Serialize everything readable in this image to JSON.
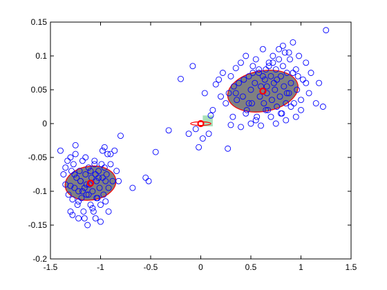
{
  "chart_data": {
    "type": "scatter",
    "title": "",
    "xlabel": "",
    "ylabel": "",
    "xlim": [
      -1.5,
      1.5
    ],
    "ylim": [
      -0.2,
      0.15
    ],
    "xticks": [
      -1.5,
      -1,
      -0.5,
      0,
      0.5,
      1,
      1.5
    ],
    "xtick_labels": [
      "-1.5",
      "-1",
      "-0.5",
      "0",
      "0.5",
      "1",
      "1.5"
    ],
    "yticks": [
      -0.2,
      -0.15,
      -0.1,
      -0.05,
      0,
      0.05,
      0.1,
      0.15
    ],
    "ytick_labels": [
      "-0.2",
      "-0.15",
      "-0.1",
      "-0.05",
      "0",
      "0.05",
      "0.1",
      "0.15"
    ],
    "grid": false,
    "colors": {
      "points": "#0000ff",
      "ellipse_fill": "#808080",
      "ellipse_edge": "#ff0000",
      "centers": "#ff0000",
      "small_patch": "#a8e0b8"
    },
    "series": [
      {
        "marker": "circle",
        "x": [
          -1.4,
          -1.37,
          -1.35,
          -1.33,
          -1.32,
          -1.3,
          -1.3,
          -1.29,
          -1.28,
          -1.28,
          -1.27,
          -1.26,
          -1.25,
          -1.24,
          -1.23,
          -1.22,
          -1.22,
          -1.21,
          -1.2,
          -1.19,
          -1.18,
          -1.17,
          -1.16,
          -1.15,
          -1.14,
          -1.13,
          -1.12,
          -1.11,
          -1.1,
          -1.09,
          -1.08,
          -1.07,
          -1.06,
          -1.05,
          -1.04,
          -1.03,
          -1.02,
          -1.01,
          -1.0,
          -0.99,
          -0.98,
          -0.97,
          -0.96,
          -0.95,
          -0.94,
          -0.93,
          -0.92,
          -0.9,
          -0.88,
          -0.86,
          -0.84,
          -0.82,
          -0.8,
          -1.25,
          -1.15,
          -1.05,
          -0.95,
          -1.2,
          -1.1,
          -1.0,
          -1.3,
          -1.18,
          -1.08,
          -0.98,
          -1.35,
          -1.22,
          -1.12,
          -1.02,
          -0.92,
          -1.26,
          -1.14,
          -1.04,
          -0.96,
          -1.16,
          -1.06,
          -0.9,
          -0.68,
          -0.55,
          -0.52,
          -0.45,
          -0.32,
          -0.2,
          -0.12,
          -0.08,
          -0.05,
          -0.02,
          0.02,
          0.04,
          0.08,
          0.12,
          0.1,
          0.15,
          0.18,
          0.2,
          0.22,
          0.25,
          0.27,
          0.28,
          0.3,
          0.32,
          0.33,
          0.35,
          0.36,
          0.38,
          0.4,
          0.42,
          0.43,
          0.45,
          0.46,
          0.48,
          0.5,
          0.51,
          0.52,
          0.54,
          0.55,
          0.56,
          0.58,
          0.59,
          0.6,
          0.62,
          0.63,
          0.64,
          0.65,
          0.66,
          0.67,
          0.68,
          0.7,
          0.71,
          0.72,
          0.73,
          0.74,
          0.75,
          0.76,
          0.78,
          0.79,
          0.8,
          0.81,
          0.82,
          0.83,
          0.84,
          0.85,
          0.86,
          0.88,
          0.89,
          0.9,
          0.92,
          0.93,
          0.95,
          0.96,
          0.98,
          1.0,
          1.02,
          1.05,
          1.08,
          1.1,
          1.15,
          1.18,
          1.22,
          1.25,
          0.3,
          0.4,
          0.5,
          0.55,
          0.6,
          0.65,
          0.7,
          0.75,
          0.8,
          0.85,
          0.9,
          0.95,
          1.0,
          0.45,
          0.58,
          0.68,
          0.78,
          0.88,
          0.35,
          0.62,
          0.72,
          0.82,
          0.92,
          0.48,
          0.52,
          0.66,
          0.76,
          0.86,
          0.97,
          1.05
        ],
        "y": [
          -0.04,
          -0.075,
          -0.09,
          -0.055,
          -0.105,
          -0.13,
          -0.092,
          -0.07,
          -0.112,
          -0.135,
          -0.06,
          -0.095,
          -0.045,
          -0.08,
          -0.12,
          -0.1,
          -0.14,
          -0.07,
          -0.085,
          -0.11,
          -0.055,
          -0.13,
          -0.095,
          -0.075,
          -0.105,
          -0.15,
          -0.065,
          -0.09,
          -0.12,
          -0.08,
          -0.1,
          -0.13,
          -0.06,
          -0.14,
          -0.085,
          -0.11,
          -0.07,
          -0.095,
          -0.12,
          -0.06,
          -0.08,
          -0.105,
          -0.065,
          -0.085,
          -0.075,
          -0.045,
          -0.095,
          -0.06,
          -0.085,
          -0.04,
          -0.07,
          -0.085,
          -0.018,
          -0.032,
          -0.05,
          -0.075,
          -0.115,
          -0.085,
          -0.07,
          -0.145,
          -0.05,
          -0.1,
          -0.125,
          -0.04,
          -0.065,
          -0.115,
          -0.105,
          -0.08,
          -0.13,
          -0.075,
          -0.09,
          -0.11,
          -0.035,
          -0.14,
          -0.055,
          -0.045,
          -0.095,
          -0.08,
          -0.085,
          -0.042,
          -0.01,
          0.066,
          -0.015,
          0.085,
          -0.008,
          -0.035,
          -0.022,
          0.045,
          -0.015,
          0.02,
          0.012,
          0.058,
          0.065,
          0.04,
          0.075,
          0.03,
          -0.037,
          0.045,
          0.07,
          0.01,
          0.055,
          0.082,
          0.035,
          0.06,
          0.09,
          0.04,
          0.065,
          0.1,
          0.02,
          0.07,
          0.05,
          0.03,
          0.085,
          0.06,
          0.095,
          0.01,
          0.075,
          0.04,
          0.055,
          0.11,
          0.03,
          0.065,
          0.08,
          0.045,
          0.02,
          0.09,
          0.07,
          0.035,
          0.1,
          0.06,
          0.05,
          0.08,
          0.025,
          0.095,
          0.04,
          0.07,
          0.015,
          0.085,
          0.055,
          0.105,
          0.03,
          0.075,
          0.045,
          0.095,
          0.06,
          0.12,
          0.03,
          0.08,
          0.05,
          0.1,
          0.02,
          0.065,
          0.09,
          0.045,
          0.075,
          0.03,
          0.06,
          0.025,
          0.138,
          -0.002,
          -0.005,
          0.0,
          0.005,
          -0.003,
          0.02,
          0.01,
          0.0,
          0.015,
          0.005,
          0.025,
          0.01,
          0.035,
          0.015,
          0.08,
          0.085,
          0.11,
          0.105,
          0.045,
          0.07,
          0.09,
          0.115,
          0.075,
          0.03,
          0.075,
          0.055,
          0.065,
          0.045,
          0.07,
          0.06
        ]
      }
    ],
    "clusters": [
      {
        "center": [
          -1.1,
          -0.088
        ],
        "semi_axis_x": 0.255,
        "semi_axis_y": 0.025,
        "angle_deg": 8
      },
      {
        "center": [
          0.62,
          0.048
        ],
        "semi_axis_x": 0.355,
        "semi_axis_y": 0.03,
        "angle_deg": 10
      },
      {
        "center": [
          0.0,
          0.0
        ],
        "semi_axis_x": 0.018,
        "semi_axis_y": 0.015,
        "angle_deg": 90
      }
    ]
  }
}
